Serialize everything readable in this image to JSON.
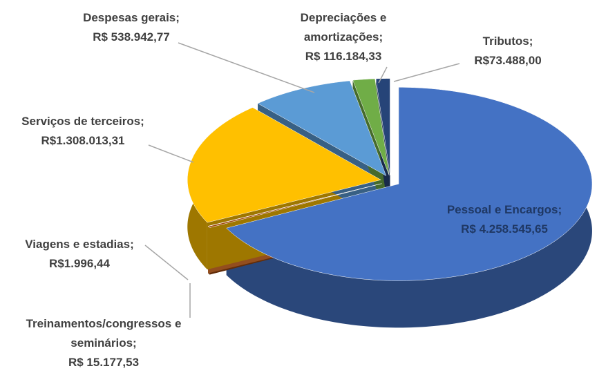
{
  "chart_data": {
    "type": "pie",
    "categories": [
      "Pessoal e Encargos;",
      "Treinamentos/congressos e seminários;",
      "Viagens e estadias;",
      "Serviços de terceiros;",
      "Despesas gerais;",
      "Depreciações e amortizações;",
      "Tributos;"
    ],
    "values": [
      4258545.65,
      15177.53,
      1996.44,
      1308013.31,
      538942.77,
      116184.33,
      73488.0
    ],
    "value_labels": [
      "R$ 4.258.545,65",
      "R$ 15.177,53",
      "R$1.996,44",
      "R$1.308.013,31",
      "R$ 538.942,77",
      "R$ 116.184,33",
      "R$73.488,00"
    ],
    "colors": [
      "#4472c4",
      "#9e480e",
      "#ed7d31",
      "#ffc000",
      "#5b9bd5",
      "#70ad47",
      "#264478"
    ]
  }
}
